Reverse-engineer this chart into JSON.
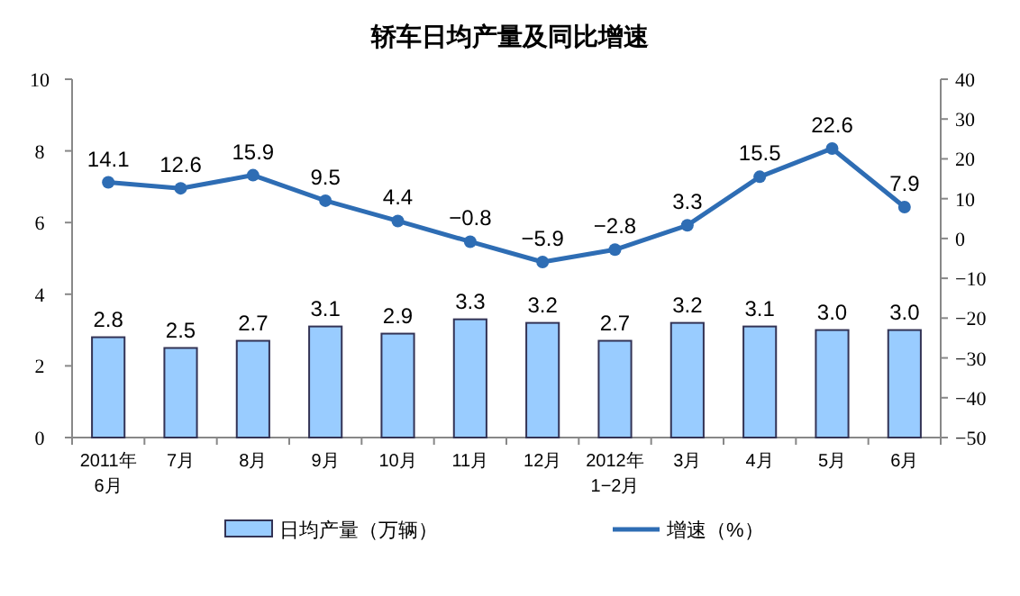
{
  "chart_data": {
    "type": "bar",
    "title": "轿车日均产量及同比增速",
    "categories": [
      "2011年\n6月",
      "7月",
      "8月",
      "9月",
      "10月",
      "11月",
      "12月",
      "2012年\n1−2月",
      "3月",
      "4月",
      "5月",
      "6月"
    ],
    "series": [
      {
        "name": "日均产量（万辆）",
        "color": "#99ccff",
        "values": [
          2.8,
          2.5,
          2.7,
          3.1,
          2.9,
          3.3,
          3.2,
          2.7,
          3.2,
          3.1,
          3.0,
          3.0
        ],
        "value_labels": [
          "2.8",
          "2.5",
          "2.7",
          "3.1",
          "2.9",
          "3.3",
          "3.2",
          "2.7",
          "3.2",
          "3.1",
          "3.0",
          "3.0"
        ]
      },
      {
        "name": "增速（%）",
        "type": "line",
        "axis": "y2",
        "color": "#2e6db4",
        "values": [
          14.1,
          12.6,
          15.9,
          9.5,
          4.4,
          -0.8,
          -5.9,
          -2.8,
          3.3,
          15.5,
          22.6,
          7.9
        ]
      }
    ],
    "ylim": [
      0,
      10
    ],
    "yticks": [
      0,
      2,
      4,
      6,
      8,
      10
    ],
    "y2lim": [
      -50,
      40
    ],
    "y2ticks": [
      -50,
      -40,
      -30,
      -20,
      -10,
      0,
      10,
      20,
      30,
      40
    ],
    "data_labels": true,
    "marker": "circle",
    "legend": "bottom",
    "grid": false
  }
}
